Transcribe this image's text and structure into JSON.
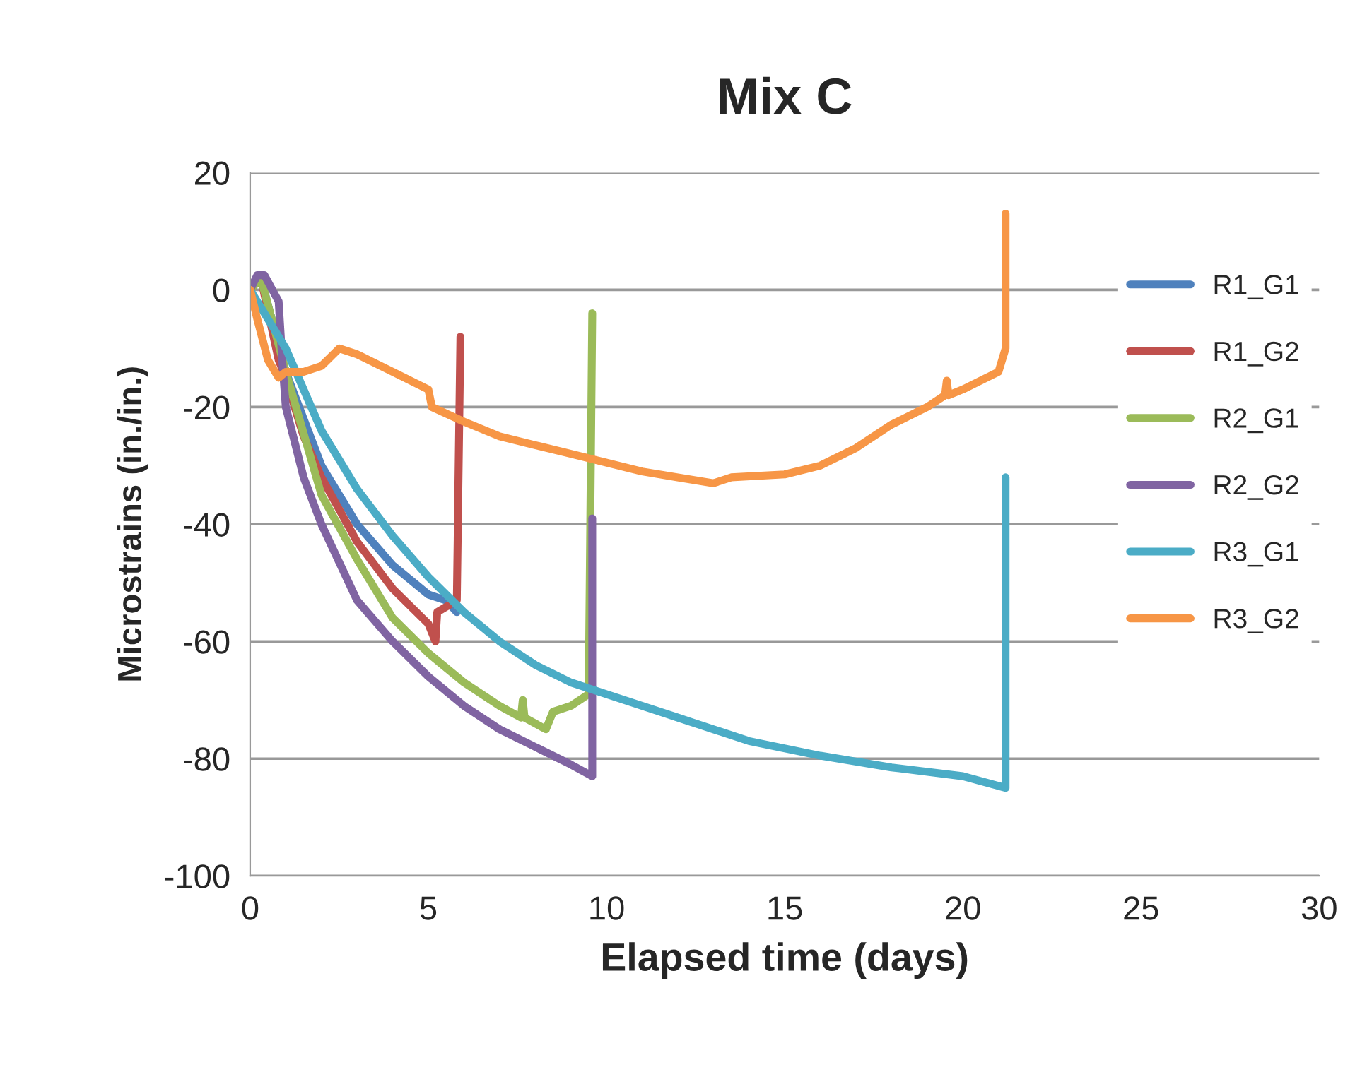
{
  "chart_data": {
    "type": "line",
    "title": "Mix C",
    "xlabel": "Elapsed time (days)",
    "ylabel": "Microstrains (in./in.)",
    "xlim": [
      0,
      30
    ],
    "xticks": [
      0,
      5,
      10,
      15,
      20,
      25,
      30
    ],
    "ylim": [
      -100,
      20
    ],
    "yticks": [
      -100,
      -80,
      -60,
      -40,
      -20,
      0,
      20
    ],
    "grid": "y",
    "legend": "right",
    "marker": "none",
    "line_style": "solid",
    "series": [
      {
        "name": "R1_G1",
        "color": "#4f81bd",
        "x": [
          0,
          0.3,
          1,
          1.5,
          2,
          3,
          4,
          5,
          5.5,
          5.8
        ],
        "values": [
          0,
          2,
          -14,
          -22,
          -30,
          -40,
          -47,
          -52,
          -53,
          -55
        ]
      },
      {
        "name": "R1_G2",
        "color": "#c0504d",
        "x": [
          0,
          0.3,
          0.8,
          1,
          1.5,
          2,
          3,
          4,
          5,
          5.2,
          5.25,
          5.8,
          5.9
        ],
        "values": [
          0,
          2,
          -12,
          -15,
          -25,
          -32,
          -43,
          -51,
          -57,
          -60,
          -55,
          -53,
          -8
        ]
      },
      {
        "name": "R2_G1",
        "color": "#9bbb59",
        "x": [
          0,
          0.3,
          1,
          2,
          3,
          4,
          5,
          6,
          7,
          7.6,
          7.65,
          7.7,
          8.3,
          8.5,
          9,
          9.5,
          9.6
        ],
        "values": [
          0,
          2,
          -14,
          -35,
          -46,
          -56,
          -62,
          -67,
          -71,
          -73,
          -70,
          -73,
          -75,
          -72,
          -71,
          -69,
          -4
        ]
      },
      {
        "name": "R2_G2",
        "color": "#8064a2",
        "x": [
          0,
          0.2,
          0.4,
          0.8,
          0.9,
          1,
          1.5,
          2,
          3,
          4,
          5,
          6,
          7,
          8,
          9,
          9.6,
          9.6
        ],
        "values": [
          0,
          2.5,
          2.5,
          -2,
          -12,
          -20,
          -32,
          -40,
          -53,
          -60,
          -66,
          -71,
          -75,
          -78,
          -81,
          -83,
          -39
        ]
      },
      {
        "name": "R3_G1",
        "color": "#4bacc6",
        "x": [
          0,
          1,
          1.5,
          2,
          3,
          4,
          5,
          6,
          7,
          8,
          9,
          10,
          12,
          14,
          16,
          18,
          20,
          21.2,
          21.2
        ],
        "values": [
          0,
          -10,
          -17,
          -24,
          -34,
          -42,
          -49,
          -55,
          -60,
          -64,
          -67,
          -69,
          -73,
          -77,
          -79.5,
          -81.5,
          -83,
          -85,
          -32
        ]
      },
      {
        "name": "R3_G2",
        "color": "#f79646",
        "x": [
          0,
          0.2,
          0.5,
          0.8,
          1,
          1.5,
          2,
          2.5,
          3,
          4,
          5,
          5.1,
          6,
          7,
          8,
          9,
          10,
          11,
          12,
          13,
          13.5,
          15,
          16,
          17,
          18,
          19,
          19.5,
          19.55,
          19.6,
          20,
          21,
          21.2,
          21.2
        ],
        "values": [
          0,
          -5,
          -12,
          -15,
          -14,
          -14,
          -13,
          -10,
          -11,
          -14,
          -17,
          -20,
          -22.5,
          -25,
          -26.5,
          -28,
          -29.5,
          -31,
          -32,
          -33,
          -32,
          -31.5,
          -30,
          -27,
          -23,
          -20,
          -18,
          -15.5,
          -18,
          -17,
          -14,
          -10,
          13
        ]
      }
    ]
  }
}
